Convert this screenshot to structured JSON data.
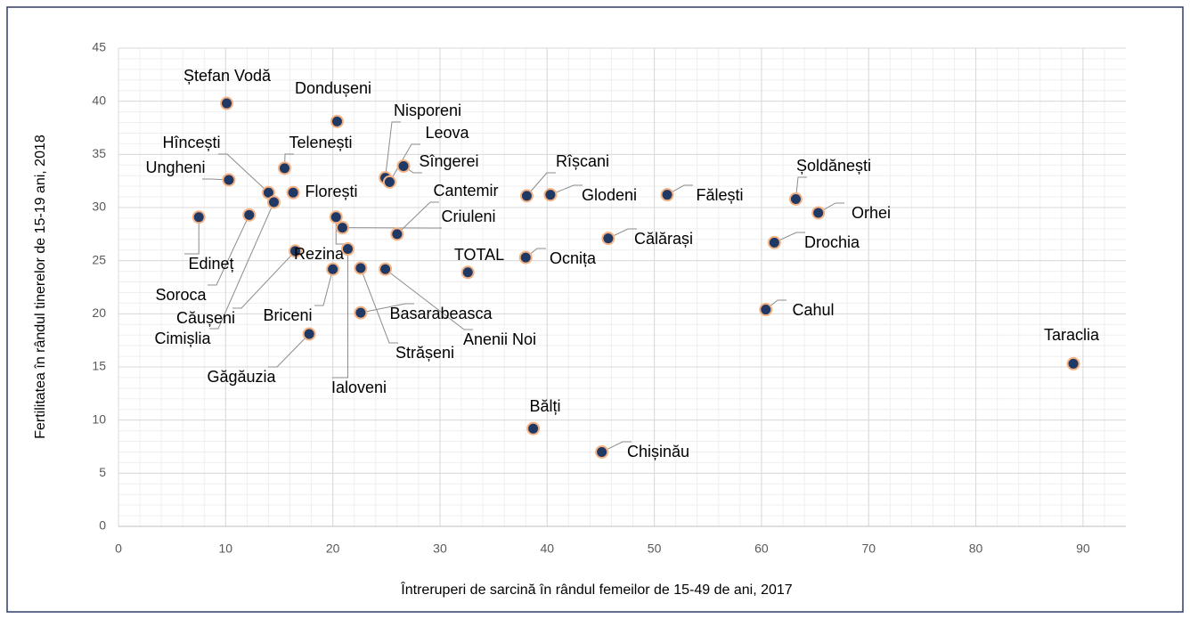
{
  "chart_data": {
    "type": "scatter",
    "xlabel": "Întreruperi de sarcină în rândul femeilor de 15-49 de ani, 2017",
    "ylabel": "Fertilitatea în rândul tinerelor de 15-19 ani, 2018",
    "xlim": [
      0,
      94
    ],
    "xticks": [
      0,
      10,
      20,
      30,
      40,
      50,
      60,
      70,
      80,
      90
    ],
    "ylim": [
      0,
      45
    ],
    "yticks": [
      0,
      5,
      10,
      15,
      20,
      25,
      30,
      35,
      40,
      45
    ],
    "grid": true,
    "color": "#1f3864",
    "edgecolor": "#f4b183",
    "labels": [
      "Ștefan Vodă",
      "Dondușeni",
      "Telenești",
      "Ungheni",
      "Hîncești",
      "Florești",
      "Cimișlia",
      "Edineț",
      "Soroca",
      "Căușeni",
      "Rezina",
      "Nisporeni",
      "Leova",
      "Sîngerei",
      "Cantemir",
      "Criuleni",
      "Briceni",
      "Ialoveni",
      "Strășeni",
      "Anenii Noi",
      "Basarabeasca",
      "Găgăuzia",
      "TOTAL",
      "Rîșcani",
      "Glodeni",
      "Fălești",
      "Șoldănești",
      "Orhei",
      "Drochia",
      "Călărași",
      "Ocnița",
      "Cahul",
      "Taraclia",
      "Bălți",
      "Chișinău"
    ],
    "x": [
      10.1,
      20.4,
      15.5,
      10.3,
      14.0,
      16.3,
      14.5,
      7.5,
      12.2,
      16.5,
      20.3,
      24.9,
      25.3,
      26.6,
      26.0,
      20.9,
      20.0,
      21.4,
      22.6,
      24.9,
      22.6,
      17.8,
      32.6,
      38.1,
      40.3,
      51.2,
      63.2,
      65.3,
      61.2,
      45.7,
      38.0,
      60.4,
      89.1,
      38.7,
      45.1
    ],
    "y": [
      39.8,
      38.1,
      33.7,
      32.6,
      31.4,
      31.4,
      30.5,
      29.1,
      29.3,
      25.9,
      29.1,
      32.8,
      32.4,
      33.9,
      27.5,
      28.1,
      24.2,
      26.1,
      24.3,
      24.2,
      20.1,
      18.1,
      23.9,
      31.1,
      31.2,
      31.2,
      30.8,
      29.5,
      26.7,
      27.1,
      25.3,
      20.4,
      15.3,
      9.2,
      7.0
    ]
  }
}
